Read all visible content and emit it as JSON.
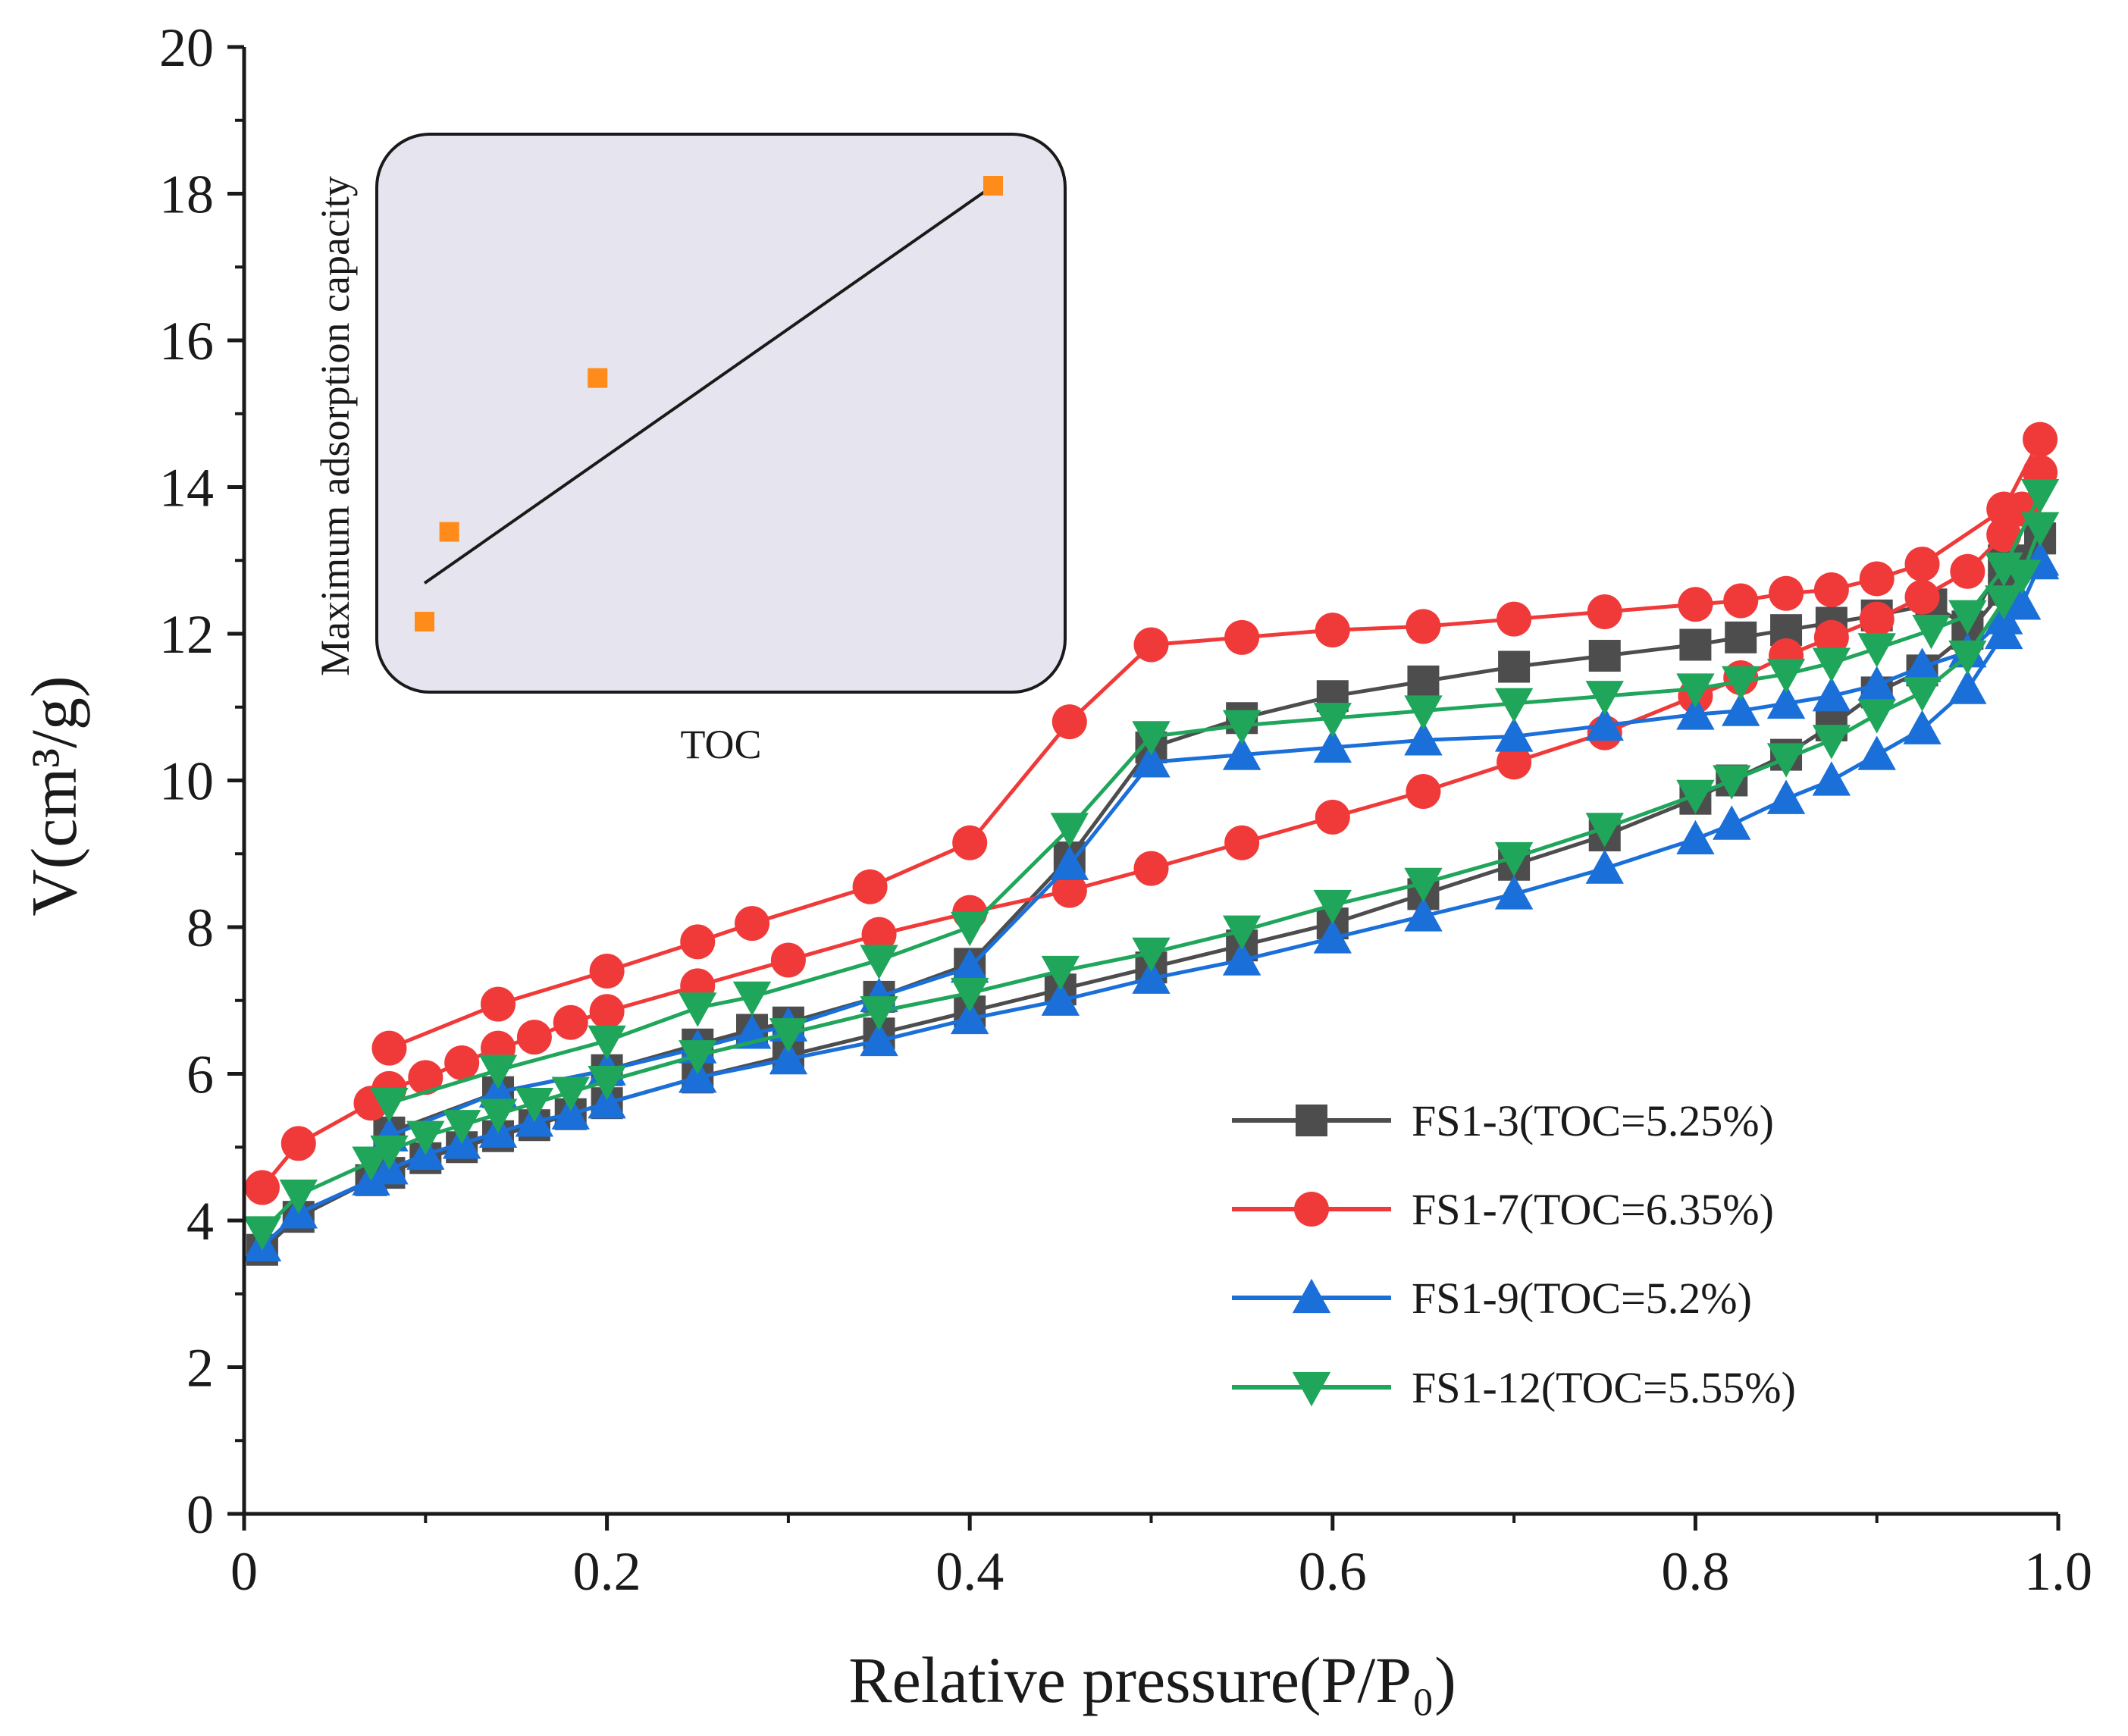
{
  "chart_data": [
    {
      "type": "line",
      "xlabel": "Relative pressure(P/P₀)",
      "ylabel": "V(cm³/g)",
      "xlim": [
        0,
        1.0
      ],
      "ylim": [
        0,
        20
      ],
      "xticks": [
        "0",
        "0.2",
        "0.4",
        "0.6",
        "0.8",
        "1.0"
      ],
      "xtick_values": [
        0,
        0.2,
        0.4,
        0.6,
        0.8,
        1.0
      ],
      "yticks": [
        "0",
        "2",
        "4",
        "6",
        "8",
        "10",
        "12",
        "14",
        "16",
        "18",
        "20"
      ],
      "ytick_values": [
        0,
        2,
        4,
        6,
        8,
        10,
        12,
        14,
        16,
        18,
        20
      ],
      "legend_position": "bottom-right",
      "grid": false,
      "series": [
        {
          "name": "FS1-3(TOC=5.25%)",
          "color": "#4d4d4d",
          "marker": "square",
          "adsorption": {
            "x": [
              0.01,
              0.03,
              0.07,
              0.08,
              0.1,
              0.12,
              0.14,
              0.16,
              0.18,
              0.2,
              0.25,
              0.3,
              0.35,
              0.4,
              0.45,
              0.5,
              0.55,
              0.6,
              0.65,
              0.7,
              0.75,
              0.8,
              0.82,
              0.85,
              0.875,
              0.9,
              0.925,
              0.95,
              0.97,
              0.98,
              0.99
            ],
            "y": [
              3.6,
              4.05,
              4.55,
              4.65,
              4.85,
              5.0,
              5.15,
              5.3,
              5.45,
              5.6,
              5.95,
              6.25,
              6.55,
              6.85,
              7.15,
              7.45,
              7.75,
              8.05,
              8.45,
              8.85,
              9.25,
              9.75,
              10.0,
              10.35,
              10.75,
              11.2,
              11.5,
              12.0,
              12.6,
              13.0,
              13.3
            ]
          },
          "desorption": {
            "x": [
              0.99,
              0.97,
              0.95,
              0.93,
              0.9,
              0.875,
              0.85,
              0.825,
              0.8,
              0.75,
              0.7,
              0.65,
              0.6,
              0.55,
              0.5,
              0.455,
              0.4,
              0.35,
              0.3,
              0.28,
              0.25,
              0.2,
              0.14,
              0.08
            ],
            "y": [
              13.3,
              13.0,
              12.1,
              12.4,
              12.25,
              12.15,
              12.05,
              11.95,
              11.85,
              11.7,
              11.55,
              11.35,
              11.15,
              10.85,
              10.45,
              8.95,
              7.5,
              7.05,
              6.7,
              6.6,
              6.4,
              6.05,
              5.75,
              5.2
            ]
          }
        },
        {
          "name": "FS1-7(TOC=6.35%)",
          "color": "#f03a3a",
          "marker": "circle",
          "adsorption": {
            "x": [
              0.01,
              0.03,
              0.07,
              0.08,
              0.1,
              0.12,
              0.14,
              0.16,
              0.18,
              0.2,
              0.25,
              0.3,
              0.35,
              0.4,
              0.455,
              0.5,
              0.55,
              0.6,
              0.65,
              0.7,
              0.75,
              0.8,
              0.825,
              0.85,
              0.875,
              0.9,
              0.925,
              0.95,
              0.97,
              0.98,
              0.99
            ],
            "y": [
              4.45,
              5.05,
              5.6,
              5.8,
              5.95,
              6.15,
              6.35,
              6.5,
              6.7,
              6.85,
              7.2,
              7.55,
              7.9,
              8.2,
              8.5,
              8.8,
              9.15,
              9.5,
              9.85,
              10.25,
              10.65,
              11.15,
              11.4,
              11.7,
              11.95,
              12.2,
              12.5,
              12.85,
              13.35,
              13.7,
              14.2
            ]
          },
          "desorption": {
            "x": [
              0.99,
              0.97,
              0.925,
              0.9,
              0.875,
              0.85,
              0.825,
              0.8,
              0.75,
              0.7,
              0.65,
              0.6,
              0.55,
              0.5,
              0.455,
              0.4,
              0.345,
              0.28,
              0.25,
              0.2,
              0.14,
              0.08
            ],
            "y": [
              14.65,
              13.7,
              12.95,
              12.75,
              12.6,
              12.55,
              12.45,
              12.4,
              12.3,
              12.2,
              12.1,
              12.05,
              11.95,
              11.85,
              10.8,
              9.15,
              8.55,
              8.05,
              7.8,
              7.4,
              6.95,
              6.35
            ]
          }
        },
        {
          "name": "FS1-9(TOC=5.2%)",
          "color": "#1a6fd9",
          "marker": "triangle-up",
          "adsorption": {
            "x": [
              0.01,
              0.03,
              0.07,
              0.08,
              0.1,
              0.12,
              0.14,
              0.16,
              0.18,
              0.2,
              0.25,
              0.3,
              0.35,
              0.4,
              0.45,
              0.5,
              0.55,
              0.6,
              0.65,
              0.7,
              0.75,
              0.8,
              0.82,
              0.85,
              0.875,
              0.9,
              0.925,
              0.95,
              0.97,
              0.98,
              0.99
            ],
            "y": [
              3.65,
              4.1,
              4.55,
              4.7,
              4.9,
              5.05,
              5.2,
              5.35,
              5.45,
              5.6,
              5.95,
              6.2,
              6.45,
              6.75,
              7.0,
              7.3,
              7.55,
              7.85,
              8.15,
              8.45,
              8.8,
              9.2,
              9.4,
              9.75,
              10.0,
              10.35,
              10.7,
              11.25,
              12.0,
              12.4,
              12.95
            ]
          },
          "desorption": {
            "x": [
              0.99,
              0.97,
              0.95,
              0.925,
              0.9,
              0.875,
              0.85,
              0.825,
              0.8,
              0.75,
              0.7,
              0.65,
              0.6,
              0.55,
              0.5,
              0.455,
              0.4,
              0.35,
              0.3,
              0.28,
              0.25,
              0.2,
              0.14,
              0.08
            ],
            "y": [
              13.0,
              12.2,
              11.75,
              11.55,
              11.3,
              11.15,
              11.05,
              10.95,
              10.9,
              10.75,
              10.6,
              10.55,
              10.45,
              10.35,
              10.25,
              8.85,
              7.45,
              7.05,
              6.65,
              6.55,
              6.35,
              6.05,
              5.75,
              5.15
            ]
          }
        },
        {
          "name": "FS1-12(TOC=5.55%)",
          "color": "#1fa65a",
          "marker": "triangle-down",
          "adsorption": {
            "x": [
              0.01,
              0.03,
              0.07,
              0.08,
              0.1,
              0.12,
              0.14,
              0.16,
              0.18,
              0.2,
              0.25,
              0.3,
              0.35,
              0.4,
              0.45,
              0.5,
              0.55,
              0.6,
              0.65,
              0.7,
              0.75,
              0.8,
              0.82,
              0.85,
              0.875,
              0.9,
              0.925,
              0.95,
              0.97,
              0.98,
              0.99
            ],
            "y": [
              3.85,
              4.35,
              4.8,
              4.95,
              5.15,
              5.3,
              5.45,
              5.6,
              5.75,
              5.9,
              6.25,
              6.55,
              6.85,
              7.1,
              7.4,
              7.65,
              7.95,
              8.3,
              8.6,
              8.95,
              9.35,
              9.8,
              10.0,
              10.3,
              10.55,
              10.9,
              11.2,
              11.7,
              12.45,
              12.8,
              13.45
            ]
          },
          "desorption": {
            "x": [
              0.99,
              0.97,
              0.95,
              0.93,
              0.9,
              0.875,
              0.85,
              0.825,
              0.8,
              0.75,
              0.7,
              0.65,
              0.6,
              0.55,
              0.5,
              0.455,
              0.4,
              0.35,
              0.28,
              0.25,
              0.2,
              0.14,
              0.08
            ],
            "y": [
              13.9,
              12.9,
              12.25,
              12.05,
              11.8,
              11.6,
              11.45,
              11.35,
              11.25,
              11.15,
              11.05,
              10.95,
              10.85,
              10.75,
              10.6,
              9.35,
              8.0,
              7.55,
              7.05,
              6.9,
              6.45,
              6.05,
              5.6
            ]
          }
        }
      ]
    },
    {
      "type": "scatter",
      "inset": true,
      "xlabel": "TOC",
      "ylabel": "Maximum adsorption capacity",
      "grid": false,
      "points": [
        {
          "x": 5.2,
          "y": 12.95
        },
        {
          "x": 5.25,
          "y": 13.3
        },
        {
          "x": 5.55,
          "y": 13.9
        },
        {
          "x": 6.35,
          "y": 14.65
        }
      ],
      "fit_line": {
        "x": [
          5.2,
          6.35
        ],
        "y": [
          13.1,
          14.65
        ]
      },
      "point_color": "#ff8c1a",
      "line_color": "#1a1a1a",
      "background_color": "#e6e4ee"
    }
  ]
}
